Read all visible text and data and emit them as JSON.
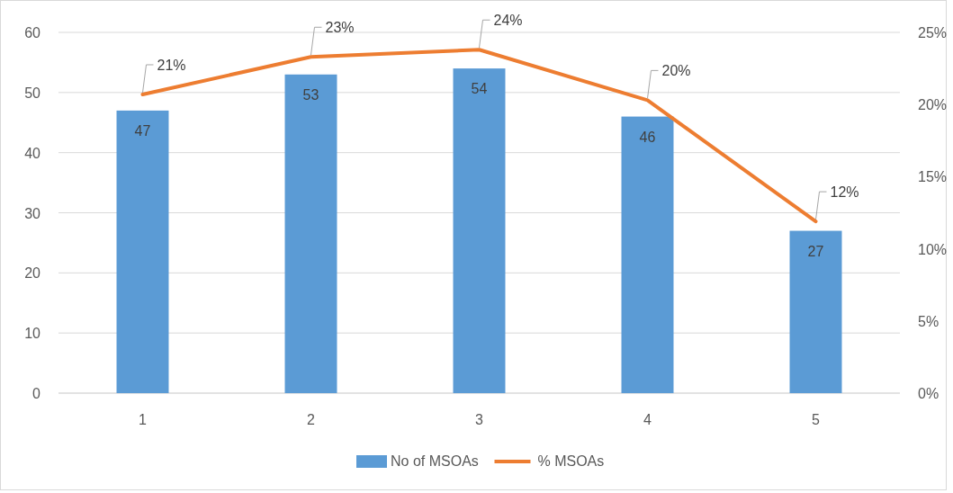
{
  "chart_data": {
    "type": "bar",
    "categories": [
      "1",
      "2",
      "3",
      "4",
      "5"
    ],
    "series": [
      {
        "name": "No of MSOAs",
        "color": "#5b9bd5",
        "values": [
          47,
          53,
          54,
          46,
          27
        ],
        "value_labels": [
          "47",
          "53",
          "54",
          "46",
          "27"
        ]
      },
      {
        "name": "% MSOAs",
        "type": "line",
        "axis": "y2",
        "color": "#ed7d31",
        "values": [
          20.7,
          23.3,
          23.8,
          20.3,
          11.9
        ],
        "value_labels": [
          "21%",
          "23%",
          "24%",
          "20%",
          "12%"
        ]
      }
    ],
    "ylim": [
      0,
      60
    ],
    "yticks": [
      0,
      10,
      20,
      30,
      40,
      50,
      60
    ],
    "y2lim": [
      0,
      25
    ],
    "y2ticks": [
      {
        "value": 0,
        "label": "0%"
      },
      {
        "value": 5,
        "label": "5%"
      },
      {
        "value": 10,
        "label": "10%"
      },
      {
        "value": 15,
        "label": "15%"
      },
      {
        "value": 20,
        "label": "20%"
      },
      {
        "value": 25,
        "label": "25%"
      }
    ],
    "grid": "y",
    "legend": "bottom",
    "marker": "none",
    "line_style": "solid"
  }
}
